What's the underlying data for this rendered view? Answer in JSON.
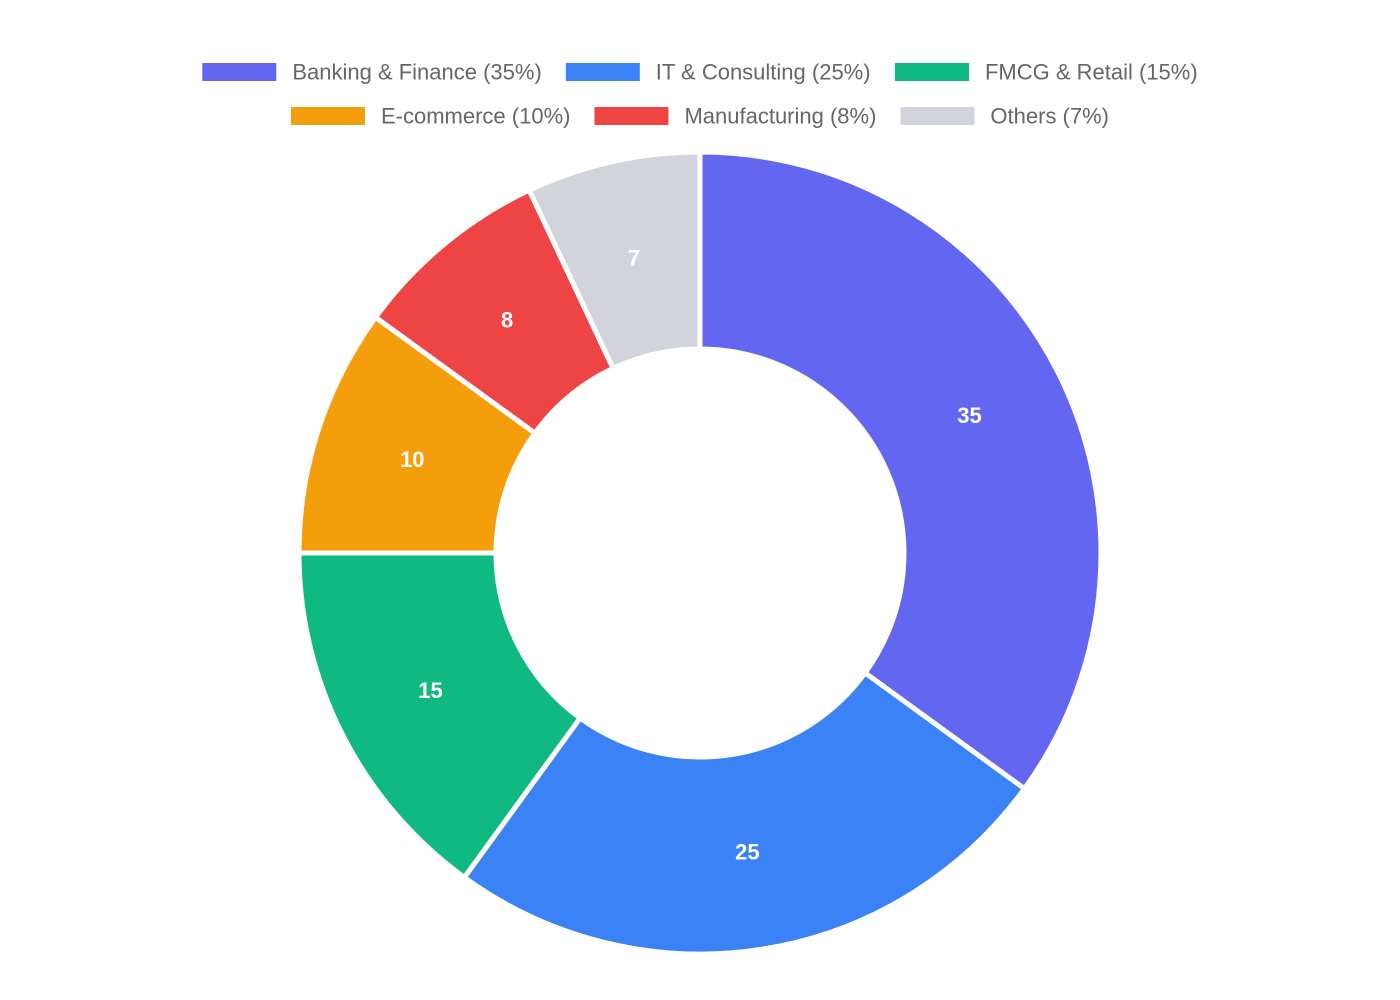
{
  "chart_data": {
    "type": "pie",
    "variant": "donut",
    "categories": [
      "Banking & Finance (35%)",
      "IT & Consulting (25%)",
      "FMCG & Retail (15%)",
      "E-commerce (10%)",
      "Manufacturing (8%)",
      "Others (7%)"
    ],
    "values": [
      35,
      25,
      15,
      10,
      8,
      7
    ],
    "data_labels": [
      "35",
      "25",
      "15",
      "10",
      "8",
      "7"
    ],
    "colors": [
      "#6366f1",
      "#3b82f6",
      "#10b981",
      "#f59e0b",
      "#ef4444",
      "#d1d5db"
    ],
    "legend_position": "top"
  }
}
